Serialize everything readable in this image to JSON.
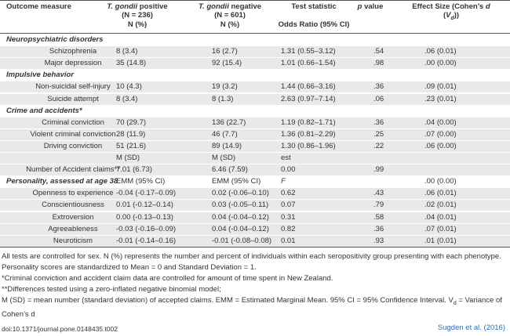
{
  "table": {
    "header": [
      [
        [
          {
            "t": "Outcome measure"
          }
        ]
      ],
      [
        [
          {
            "t": "T. gondii",
            "i": true
          },
          {
            "t": " positive"
          }
        ],
        [
          {
            "t": "(N = 236)"
          }
        ],
        [
          {
            "t": "N (%)"
          }
        ]
      ],
      [
        [
          {
            "t": "T. gondii",
            "i": true
          },
          {
            "t": " negative"
          }
        ],
        [
          {
            "t": "(N = 601)"
          }
        ],
        [
          {
            "t": "N (%)"
          }
        ]
      ],
      [
        [
          {
            "t": "Test statistic"
          }
        ],
        [],
        [
          {
            "t": "Odds Ratio (95% CI)"
          }
        ]
      ],
      [
        [
          {
            "t": "p",
            "i": true
          },
          {
            "t": " value"
          }
        ]
      ],
      [
        [
          {
            "t": "Effect Size (Cohen’s "
          },
          {
            "t": "d",
            "i": true
          }
        ],
        [
          {
            "t": "("
          },
          {
            "t": "V",
            "i": true
          },
          {
            "t": "d",
            "i": true,
            "sub": true
          },
          {
            "t": "))"
          }
        ]
      ]
    ],
    "sections": [
      {
        "title": [
          "Neuropsychiatric disorders",
          null,
          null,
          null,
          null,
          null
        ],
        "rows": [
          [
            "Schizophrenia",
            "8 (3.4)",
            "16 (2.7)",
            "1.31 (0.55–3.12)",
            ".54",
            ".06 (0.01)"
          ],
          [
            "Major depression",
            "35 (14.8)",
            "92 (15.4)",
            "1.01 (0.66–1.54)",
            ".98",
            ".00 (0.00)"
          ]
        ]
      },
      {
        "title": [
          "Impulsive behavior",
          null,
          null,
          null,
          null,
          null
        ],
        "rows": [
          [
            "Non-suicidal self-injury",
            "10 (4.3)",
            "19 (3.2)",
            "1.44 (0.66–3.16)",
            ".36",
            ".09 (0.01)"
          ],
          [
            "Suicide attempt",
            "8 (3.4)",
            "8 (1.3)",
            "2.63 (0.97–7.14)",
            ".06",
            ".23 (0.01)"
          ]
        ]
      },
      {
        "title": [
          "Crime and accidents*",
          null,
          null,
          null,
          null,
          null
        ],
        "rows": [
          [
            "Criminal conviction",
            "70 (29.7)",
            "136 (22.7)",
            "1.19 (0.82–1.71)",
            ".36",
            ".04 (0.00)"
          ],
          [
            "Violent criminal conviction",
            "28 (11.9)",
            "46 (7.7)",
            "1.36 (0.81–2.29)",
            ".25",
            ".07 (0.00)"
          ],
          [
            "Driving conviction",
            "51 (21.6)",
            "89 (14.9)",
            "1.30 (0.86–1.96)",
            ".22",
            ".06 (0.00)"
          ],
          [
            null,
            "M (SD)",
            "M (SD)",
            "est",
            null,
            null
          ],
          [
            "Number of Accident claims**",
            "7.01 (6.73)",
            "6.46 (7.59)",
            "0.00",
            ".99",
            null
          ]
        ]
      },
      {
        "title": [
          "Personality, assessed at age 38",
          "EMM (95% CI)",
          "EMM (95% CI)",
          "F",
          null,
          ".00 (0.00)"
        ],
        "rows": [
          [
            "Openness to experience",
            "-0.04 (-0.17–0.09)",
            "0.02 (-0.06–0.10)",
            "0.62",
            ".43",
            ".06 (0.01)"
          ],
          [
            "Conscientiousness",
            "0.01 (-0.12–0.14)",
            "0.03 (-0.05–0.11)",
            "0.07",
            ".79",
            ".02 (0.01)"
          ],
          [
            "Extroversion",
            "0.00 (-0.13–0.13)",
            "0.04 (-0.04–0.12)",
            "0.31",
            ".58",
            ".04 (0.01)"
          ],
          [
            "Agreeableness",
            "-0.03 (-0.16–0.09)",
            "0.04 (-0.04–0.12)",
            "0.82",
            ".36",
            ".07 (0.01)"
          ],
          [
            "Neuroticism",
            "-0.01 (-0.14–0.16)",
            "-0.01 (-0.08–0.08)",
            "0.01",
            ".93",
            ".01 (0.01)"
          ]
        ]
      }
    ],
    "notes": [
      [
        {
          "t": "All tests are controlled for sex. N (%) represents the number and percent of individuals within each seropositivity group presenting with each phenotype. Personality scores are standardized to Mean = 0 and Standard Deviation = 1."
        }
      ],
      [
        {
          "t": "*Criminal conviction and accident claim data are controlled for amount of time spent in New Zealand."
        }
      ],
      [
        {
          "t": "**Differences tested using a zero-inflated negative binomial model;"
        }
      ],
      [
        {
          "t": "M (SD) = mean number (standard deviation) of accepted claims. EMM = Estimated Marginal Mean. 95% CI = 95% Confidence Interval. V"
        },
        {
          "t": "d",
          "sub": true
        },
        {
          "t": " = Variance of Cohen’s d"
        }
      ]
    ]
  },
  "footer": {
    "doi": "doi:10.1371/journal.pone.0148435.t002",
    "credit": "Sugden et al. (2016)"
  }
}
